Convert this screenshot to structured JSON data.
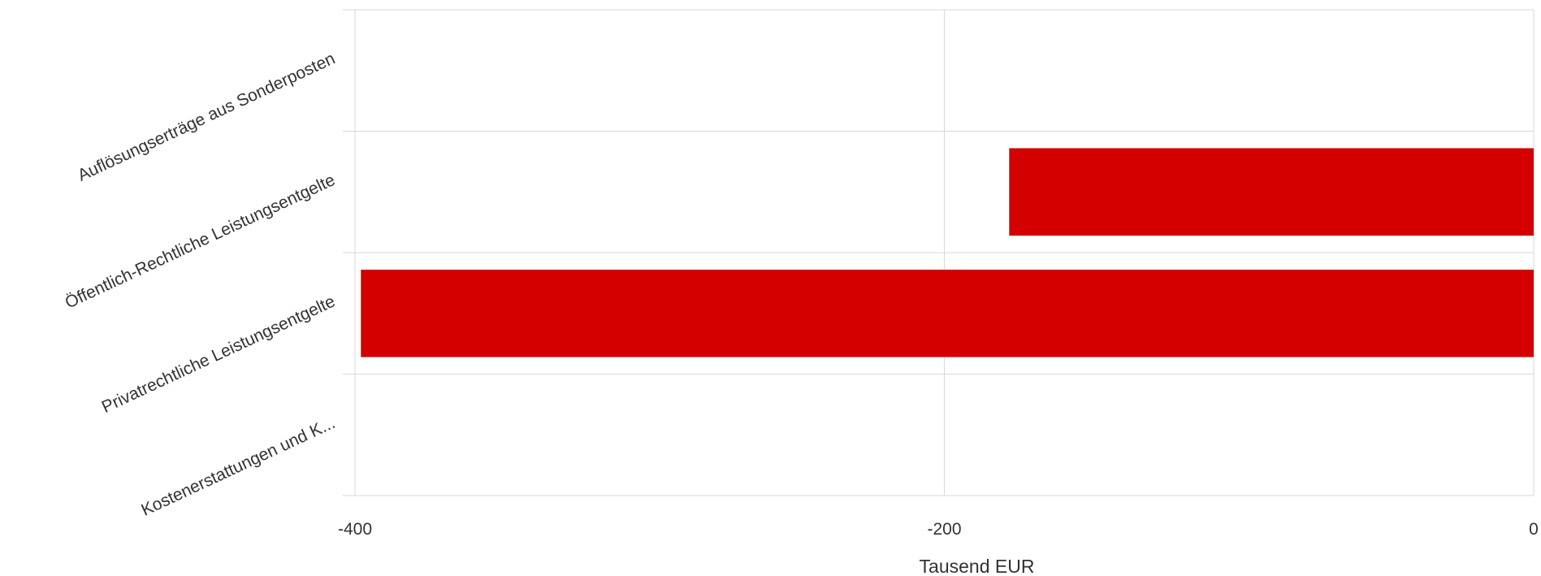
{
  "chart_data": {
    "type": "bar",
    "orientation": "horizontal",
    "categories": [
      "Auflösungserträge aus Sonderposten",
      "Öffentlich-Rechtliche Leistungsentgelte",
      "Privatrechtliche Leistungsentgelte",
      "Kostenerstattungen und K..."
    ],
    "values": [
      0,
      -178,
      -398,
      0
    ],
    "xlabel": "Tausend EUR",
    "xlim": [
      -400,
      0
    ],
    "xticks": [
      -400,
      -200,
      0
    ],
    "xtick_labels": [
      "-400",
      "-200",
      "0"
    ],
    "grid": true,
    "bar_color": "#d40000"
  }
}
